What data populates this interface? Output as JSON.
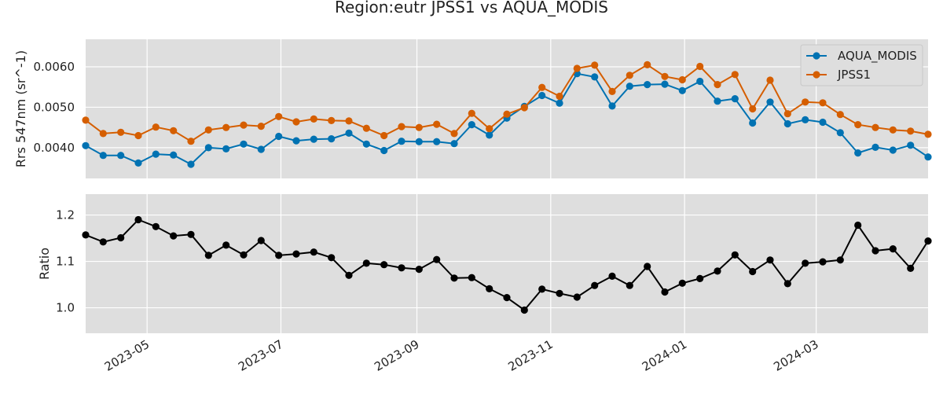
{
  "chart_data": {
    "type": "line",
    "title": "Region:eutr JPSS1 vs AQUA_MODIS",
    "colors": {
      "AQUA_MODIS": "#0072b2",
      "JPSS1": "#d55e00",
      "Ratio": "#000000",
      "panel_bg": "#dedede",
      "grid": "#ffffff"
    },
    "x_dates": [
      "2023-04-03",
      "2023-04-11",
      "2023-04-19",
      "2023-04-27",
      "2023-05-05",
      "2023-05-13",
      "2023-05-21",
      "2023-05-29",
      "2023-06-06",
      "2023-06-14",
      "2023-06-22",
      "2023-06-30",
      "2023-07-08",
      "2023-07-16",
      "2023-07-24",
      "2023-08-01",
      "2023-08-09",
      "2023-08-17",
      "2023-08-25",
      "2023-09-02",
      "2023-09-10",
      "2023-09-18",
      "2023-09-26",
      "2023-10-04",
      "2023-10-12",
      "2023-10-20",
      "2023-10-28",
      "2023-11-05",
      "2023-11-13",
      "2023-11-21",
      "2023-11-29",
      "2023-12-07",
      "2023-12-15",
      "2023-12-23",
      "2023-12-31",
      "2024-01-08",
      "2024-01-16",
      "2024-01-24",
      "2024-02-01",
      "2024-02-09",
      "2024-02-17",
      "2024-02-25",
      "2024-03-04",
      "2024-03-12",
      "2024-03-20",
      "2024-03-28",
      "2024-04-05",
      "2024-04-13",
      "2024-04-21"
    ],
    "top": {
      "ylabel": "Rrs 547nm (sr^-1)",
      "yticks": [
        "0.0040",
        "0.0050",
        "0.0060"
      ],
      "ylim": [
        0.00324,
        0.00668
      ],
      "legend_position": "upper right",
      "series": [
        {
          "name": "AQUA_MODIS",
          "values": [
            0.00405,
            0.00381,
            0.00381,
            0.00362,
            0.00384,
            0.00382,
            0.00359,
            0.004,
            0.00397,
            0.00409,
            0.00396,
            0.00428,
            0.00417,
            0.00421,
            0.00422,
            0.00436,
            0.00409,
            0.00393,
            0.00416,
            0.00415,
            0.00415,
            0.0041,
            0.00457,
            0.00431,
            0.00473,
            0.00502,
            0.00529,
            0.0051,
            0.00583,
            0.00575,
            0.00503,
            0.00552,
            0.00556,
            0.00557,
            0.00541,
            0.00564,
            0.00515,
            0.00521,
            0.00461,
            0.00513,
            0.00459,
            0.00469,
            0.00463,
            0.00437,
            0.00387,
            0.00401,
            0.00394,
            0.00406,
            0.00377
          ]
        },
        {
          "name": "JPSS1",
          "values": [
            0.00468,
            0.00435,
            0.00438,
            0.0043,
            0.00451,
            0.00442,
            0.00416,
            0.00444,
            0.0045,
            0.00456,
            0.00453,
            0.00477,
            0.00464,
            0.00471,
            0.00467,
            0.00466,
            0.00448,
            0.0043,
            0.00452,
            0.0045,
            0.00458,
            0.00435,
            0.00485,
            0.00447,
            0.00483,
            0.00499,
            0.00549,
            0.00527,
            0.00596,
            0.00604,
            0.00539,
            0.00579,
            0.00605,
            0.00576,
            0.00568,
            0.00601,
            0.00556,
            0.00581,
            0.00496,
            0.00567,
            0.00484,
            0.00513,
            0.00511,
            0.00482,
            0.00457,
            0.0045,
            0.00444,
            0.00441,
            0.00433
          ]
        }
      ]
    },
    "bottom": {
      "ylabel": "Ratio",
      "yticks": [
        "1.0",
        "1.1",
        "1.2"
      ],
      "ylim": [
        0.945,
        1.245
      ],
      "series": [
        {
          "name": "Ratio",
          "values": [
            1.157,
            1.142,
            1.151,
            1.19,
            1.175,
            1.155,
            1.158,
            1.113,
            1.135,
            1.114,
            1.145,
            1.113,
            1.116,
            1.12,
            1.108,
            1.07,
            1.096,
            1.093,
            1.086,
            1.083,
            1.104,
            1.064,
            1.065,
            1.041,
            1.022,
            0.995,
            1.04,
            1.031,
            1.023,
            1.048,
            1.068,
            1.048,
            1.089,
            1.034,
            1.053,
            1.063,
            1.079,
            1.114,
            1.078,
            1.103,
            1.052,
            1.096,
            1.099,
            1.103,
            1.178,
            1.123,
            1.127,
            1.085,
            1.144
          ]
        }
      ]
    },
    "xticks": [
      "2023-05",
      "2023-07",
      "2023-09",
      "2023-11",
      "2024-01",
      "2024-03"
    ],
    "xlim": [
      "2023-04-03",
      "2024-04-21"
    ]
  }
}
